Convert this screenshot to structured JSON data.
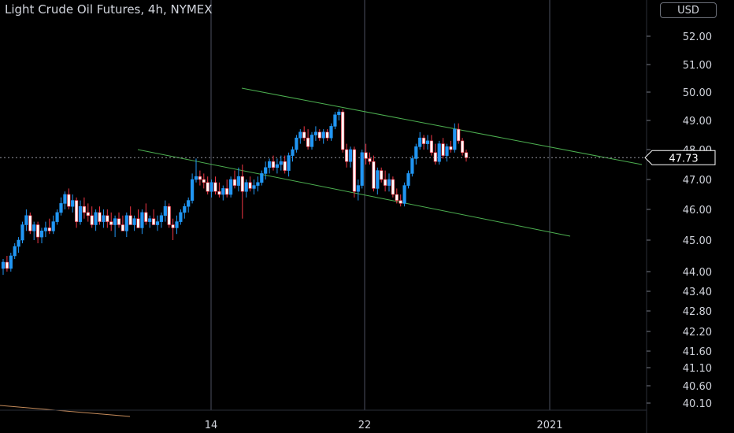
{
  "chart_data": {
    "type": "candlestick",
    "title": "Light Crude Oil Futures, 4h, NYMEX",
    "currency": "USD",
    "last_price": 47.73,
    "y_ticks": [
      52.0,
      51.0,
      50.0,
      49.0,
      48.0,
      47.0,
      46.0,
      45.0,
      44.0,
      43.4,
      42.8,
      42.2,
      41.6,
      41.1,
      40.6,
      40.1
    ],
    "x_ticks": [
      "14",
      "22",
      "2021"
    ],
    "colors": {
      "up": "#2196f3",
      "down": "#f23645",
      "candle_body": "#ffffff",
      "trendline": "#4caf50",
      "grid": "#363a45",
      "text": "#d1d4dc"
    },
    "candles": [
      [
        44.1,
        44.4,
        43.9,
        44.3
      ],
      [
        44.3,
        44.5,
        44.0,
        44.1
      ],
      [
        44.1,
        44.6,
        44.0,
        44.5
      ],
      [
        44.5,
        44.9,
        44.4,
        44.8
      ],
      [
        44.8,
        45.1,
        44.6,
        45.0
      ],
      [
        45.0,
        45.6,
        44.9,
        45.5
      ],
      [
        45.5,
        46.0,
        45.3,
        45.8
      ],
      [
        45.8,
        45.9,
        45.2,
        45.3
      ],
      [
        45.3,
        45.6,
        45.0,
        45.5
      ],
      [
        45.5,
        45.6,
        44.9,
        45.1
      ],
      [
        45.1,
        45.4,
        44.9,
        45.3
      ],
      [
        45.3,
        45.6,
        45.1,
        45.4
      ],
      [
        45.4,
        45.7,
        45.2,
        45.3
      ],
      [
        45.3,
        45.8,
        45.2,
        45.6
      ],
      [
        45.6,
        46.0,
        45.5,
        45.9
      ],
      [
        45.9,
        46.4,
        45.8,
        46.2
      ],
      [
        46.2,
        46.6,
        46.0,
        46.5
      ],
      [
        46.5,
        46.7,
        46.0,
        46.1
      ],
      [
        46.1,
        46.5,
        45.9,
        46.3
      ],
      [
        46.3,
        46.4,
        45.4,
        45.6
      ],
      [
        45.6,
        46.3,
        45.5,
        46.1
      ],
      [
        46.1,
        46.4,
        45.7,
        45.9
      ],
      [
        45.9,
        46.2,
        45.6,
        45.8
      ],
      [
        45.8,
        46.1,
        45.4,
        45.5
      ],
      [
        45.5,
        46.0,
        45.3,
        45.9
      ],
      [
        45.9,
        46.1,
        45.5,
        45.6
      ],
      [
        45.6,
        46.0,
        45.4,
        45.8
      ],
      [
        45.8,
        46.0,
        45.4,
        45.6
      ],
      [
        45.6,
        45.9,
        45.3,
        45.5
      ],
      [
        45.5,
        45.8,
        45.1,
        45.7
      ],
      [
        45.7,
        45.9,
        45.4,
        45.5
      ],
      [
        45.5,
        45.8,
        45.3,
        45.3
      ],
      [
        45.3,
        45.9,
        45.1,
        45.8
      ],
      [
        45.8,
        46.1,
        45.5,
        45.5
      ],
      [
        45.5,
        45.8,
        45.3,
        45.7
      ],
      [
        45.7,
        46.0,
        45.4,
        45.4
      ],
      [
        45.4,
        46.0,
        45.2,
        45.9
      ],
      [
        45.9,
        46.2,
        45.5,
        45.6
      ],
      [
        45.6,
        45.8,
        45.4,
        45.7
      ],
      [
        45.7,
        46.0,
        45.5,
        45.5
      ],
      [
        45.5,
        45.8,
        45.3,
        45.6
      ],
      [
        45.6,
        45.9,
        45.4,
        45.8
      ],
      [
        45.8,
        46.3,
        45.6,
        46.1
      ],
      [
        46.1,
        46.2,
        45.4,
        45.5
      ],
      [
        45.5,
        45.7,
        45.0,
        45.4
      ],
      [
        45.4,
        45.8,
        45.2,
        45.6
      ],
      [
        45.6,
        46.0,
        45.5,
        45.9
      ],
      [
        45.9,
        46.2,
        45.7,
        46.1
      ],
      [
        46.1,
        46.4,
        45.9,
        46.3
      ],
      [
        46.3,
        47.2,
        46.2,
        47.0
      ],
      [
        47.0,
        47.7,
        46.9,
        47.1
      ],
      [
        47.1,
        47.3,
        46.8,
        47.0
      ],
      [
        47.0,
        47.2,
        46.7,
        46.9
      ],
      [
        46.9,
        47.1,
        46.5,
        46.6
      ],
      [
        46.6,
        47.0,
        46.4,
        46.9
      ],
      [
        46.9,
        47.1,
        46.5,
        46.6
      ],
      [
        46.6,
        46.9,
        46.4,
        46.5
      ],
      [
        46.5,
        46.8,
        46.3,
        46.7
      ],
      [
        46.7,
        47.0,
        46.4,
        46.5
      ],
      [
        46.5,
        47.1,
        46.4,
        47.0
      ],
      [
        47.0,
        47.3,
        46.7,
        46.8
      ],
      [
        46.8,
        47.4,
        46.6,
        47.1
      ],
      [
        47.1,
        47.5,
        45.7,
        46.6
      ],
      [
        46.6,
        47.0,
        46.4,
        46.9
      ],
      [
        46.9,
        47.1,
        46.6,
        46.7
      ],
      [
        46.7,
        47.0,
        46.5,
        46.8
      ],
      [
        46.8,
        47.1,
        46.6,
        46.9
      ],
      [
        46.9,
        47.3,
        46.8,
        47.2
      ],
      [
        47.2,
        47.6,
        47.0,
        47.4
      ],
      [
        47.4,
        47.7,
        47.2,
        47.6
      ],
      [
        47.6,
        47.8,
        47.3,
        47.4
      ],
      [
        47.4,
        47.7,
        47.2,
        47.5
      ],
      [
        47.5,
        47.8,
        47.3,
        47.6
      ],
      [
        47.6,
        47.8,
        47.2,
        47.3
      ],
      [
        47.3,
        47.9,
        47.1,
        47.8
      ],
      [
        47.8,
        48.1,
        47.6,
        48.0
      ],
      [
        48.0,
        48.5,
        47.9,
        48.4
      ],
      [
        48.4,
        48.7,
        48.2,
        48.6
      ],
      [
        48.6,
        48.8,
        48.3,
        48.4
      ],
      [
        48.4,
        48.7,
        48.0,
        48.1
      ],
      [
        48.1,
        48.6,
        48.0,
        48.5
      ],
      [
        48.5,
        48.8,
        48.3,
        48.6
      ],
      [
        48.6,
        48.7,
        48.3,
        48.4
      ],
      [
        48.4,
        48.7,
        48.2,
        48.6
      ],
      [
        48.6,
        48.7,
        48.3,
        48.4
      ],
      [
        48.4,
        48.9,
        48.3,
        48.8
      ],
      [
        48.8,
        49.3,
        48.7,
        49.2
      ],
      [
        49.2,
        49.4,
        49.0,
        49.3
      ],
      [
        49.3,
        49.4,
        47.9,
        48.0
      ],
      [
        48.0,
        48.2,
        47.4,
        47.6
      ],
      [
        47.6,
        48.1,
        47.4,
        48.0
      ],
      [
        48.0,
        48.1,
        46.4,
        46.6
      ],
      [
        46.6,
        47.0,
        46.3,
        46.8
      ],
      [
        46.8,
        48.0,
        46.7,
        47.9
      ],
      [
        47.9,
        48.2,
        47.5,
        47.7
      ],
      [
        47.7,
        47.9,
        47.5,
        47.6
      ],
      [
        47.6,
        47.8,
        46.6,
        46.7
      ],
      [
        46.7,
        47.4,
        46.5,
        47.3
      ],
      [
        47.3,
        47.4,
        46.9,
        47.0
      ],
      [
        47.0,
        47.3,
        46.6,
        46.8
      ],
      [
        46.8,
        47.2,
        46.6,
        47.0
      ],
      [
        47.0,
        47.1,
        46.4,
        46.5
      ],
      [
        46.5,
        46.7,
        46.2,
        46.3
      ],
      [
        46.3,
        46.5,
        46.1,
        46.2
      ],
      [
        46.2,
        46.9,
        46.1,
        46.8
      ],
      [
        46.8,
        47.3,
        46.7,
        47.2
      ],
      [
        47.2,
        47.8,
        47.1,
        47.7
      ],
      [
        47.7,
        48.2,
        47.5,
        48.1
      ],
      [
        48.1,
        48.6,
        48.0,
        48.4
      ],
      [
        48.4,
        48.5,
        48.0,
        48.2
      ],
      [
        48.2,
        48.5,
        48.0,
        48.3
      ],
      [
        48.3,
        48.5,
        47.8,
        47.9
      ],
      [
        47.9,
        48.2,
        47.5,
        47.6
      ],
      [
        47.6,
        48.3,
        47.5,
        48.2
      ],
      [
        48.2,
        48.4,
        47.7,
        47.8
      ],
      [
        47.8,
        48.2,
        47.6,
        48.1
      ],
      [
        48.1,
        48.3,
        47.9,
        48.0
      ],
      [
        48.0,
        48.9,
        47.9,
        48.7
      ],
      [
        48.7,
        48.9,
        48.2,
        48.3
      ],
      [
        48.3,
        48.4,
        47.8,
        47.9
      ],
      [
        47.9,
        48.0,
        47.6,
        47.73
      ]
    ]
  }
}
